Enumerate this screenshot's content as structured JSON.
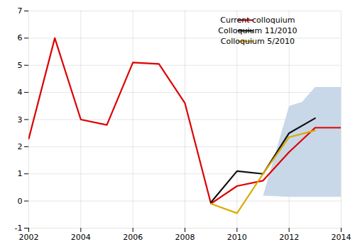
{
  "chart_data": {
    "type": "line",
    "x": [
      2002,
      2003,
      2004,
      2005,
      2006,
      2007,
      2008,
      2009,
      2010,
      2011,
      2012,
      2013,
      2014
    ],
    "series": [
      {
        "name": "Current colloquium",
        "color": "#dd0000",
        "values": [
          2.3,
          6.0,
          3.0,
          2.8,
          5.1,
          5.05,
          3.6,
          -0.1,
          0.55,
          0.75,
          1.8,
          2.7,
          2.7
        ]
      },
      {
        "name": "Colloquium 11/2010",
        "color": "#111111",
        "values": [
          null,
          null,
          null,
          null,
          null,
          null,
          null,
          -0.05,
          1.1,
          1.0,
          2.5,
          3.05,
          null
        ]
      },
      {
        "name": "Colloquium 5/2010",
        "color": "#ddaa00",
        "values": [
          null,
          null,
          null,
          null,
          null,
          null,
          null,
          -0.1,
          -0.45,
          1.0,
          2.35,
          2.6,
          null
        ]
      }
    ],
    "shaded_region": {
      "top_x": [
        2011,
        2012,
        2012.5,
        2013,
        2014
      ],
      "top_y": [
        0.2,
        3.5,
        3.65,
        4.2,
        4.2
      ],
      "bottom_x": [
        2011,
        2012,
        2013,
        2014
      ],
      "bottom_y": [
        0.2,
        0.15,
        0.15,
        0.15
      ],
      "color": "#c8d8e8"
    },
    "xlim": [
      2002,
      2014
    ],
    "ylim": [
      -1,
      7
    ],
    "xticks": [
      2002,
      2004,
      2006,
      2008,
      2010,
      2012,
      2014
    ],
    "yticks": [
      -1,
      0,
      1,
      2,
      3,
      4,
      5,
      6,
      7
    ],
    "grid": true,
    "legend": "upper right"
  }
}
